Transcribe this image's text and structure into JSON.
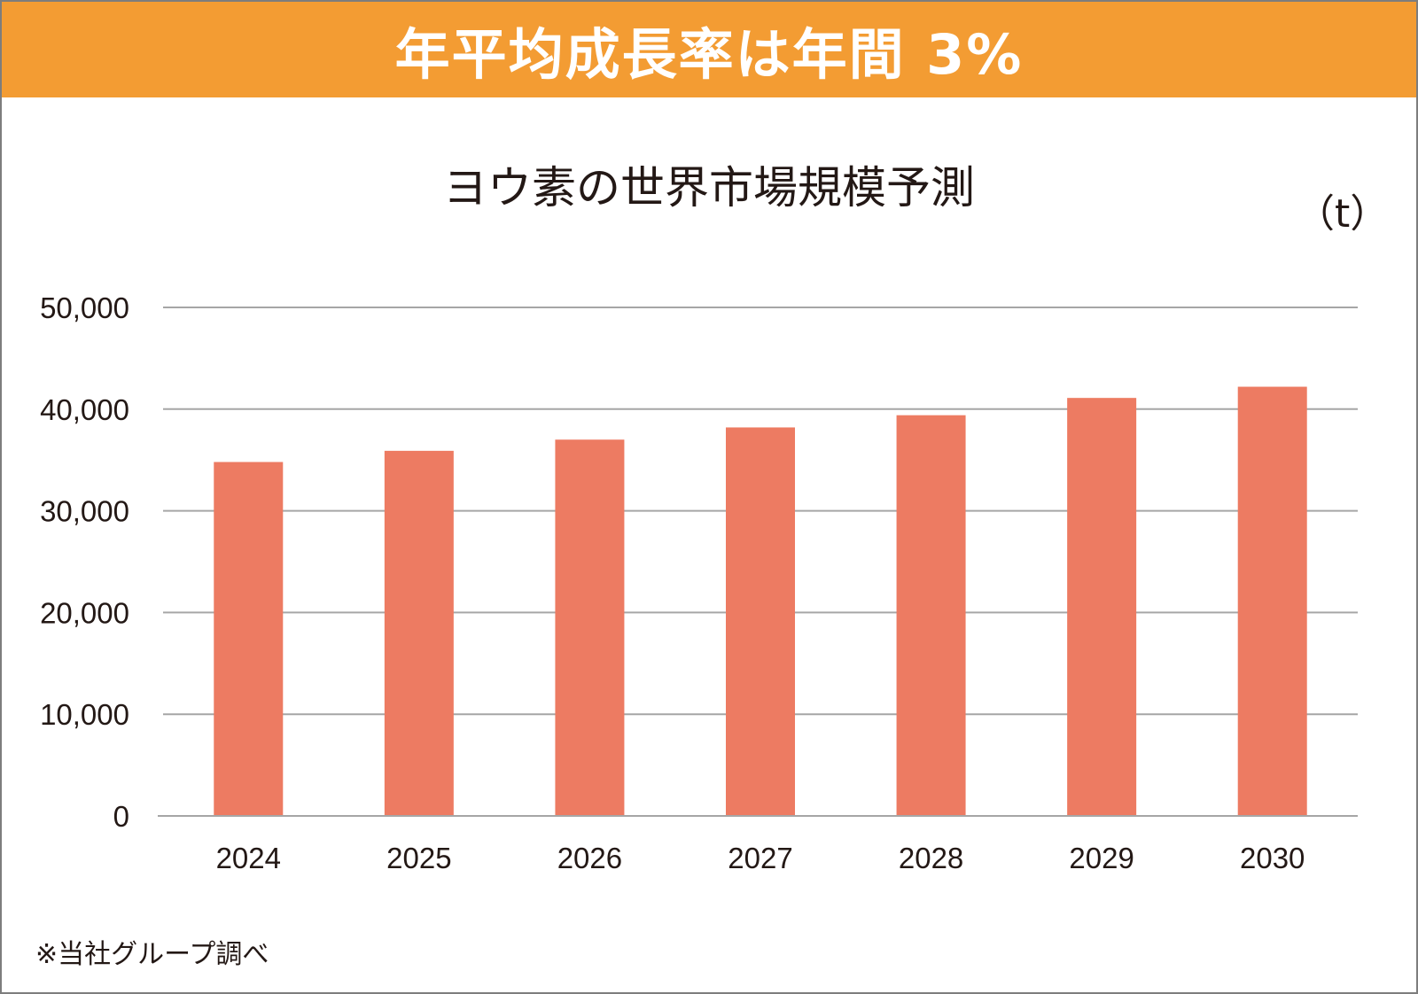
{
  "header": {
    "text": "年平均成長率は年間 3%"
  },
  "chart_data": {
    "type": "bar",
    "title": "ヨウ素の世界市場規模予測",
    "unit": "（t）",
    "categories": [
      "2024",
      "2025",
      "2026",
      "2027",
      "2028",
      "2029",
      "2030"
    ],
    "values": [
      34800,
      35900,
      37000,
      38200,
      39400,
      41100,
      42200
    ],
    "ylim": [
      0,
      50000
    ],
    "yticks": [
      0,
      10000,
      20000,
      30000,
      40000,
      50000
    ],
    "ytick_labels": [
      "0",
      "10,000",
      "20,000",
      "30,000",
      "40,000",
      "50,000"
    ],
    "grid": true,
    "bar_color": "#ed7b62",
    "grid_color": "#a6a6a6"
  },
  "footnote": "※当社グループ調べ",
  "colors": {
    "header_bg": "#f39c33",
    "text": "#231815"
  }
}
